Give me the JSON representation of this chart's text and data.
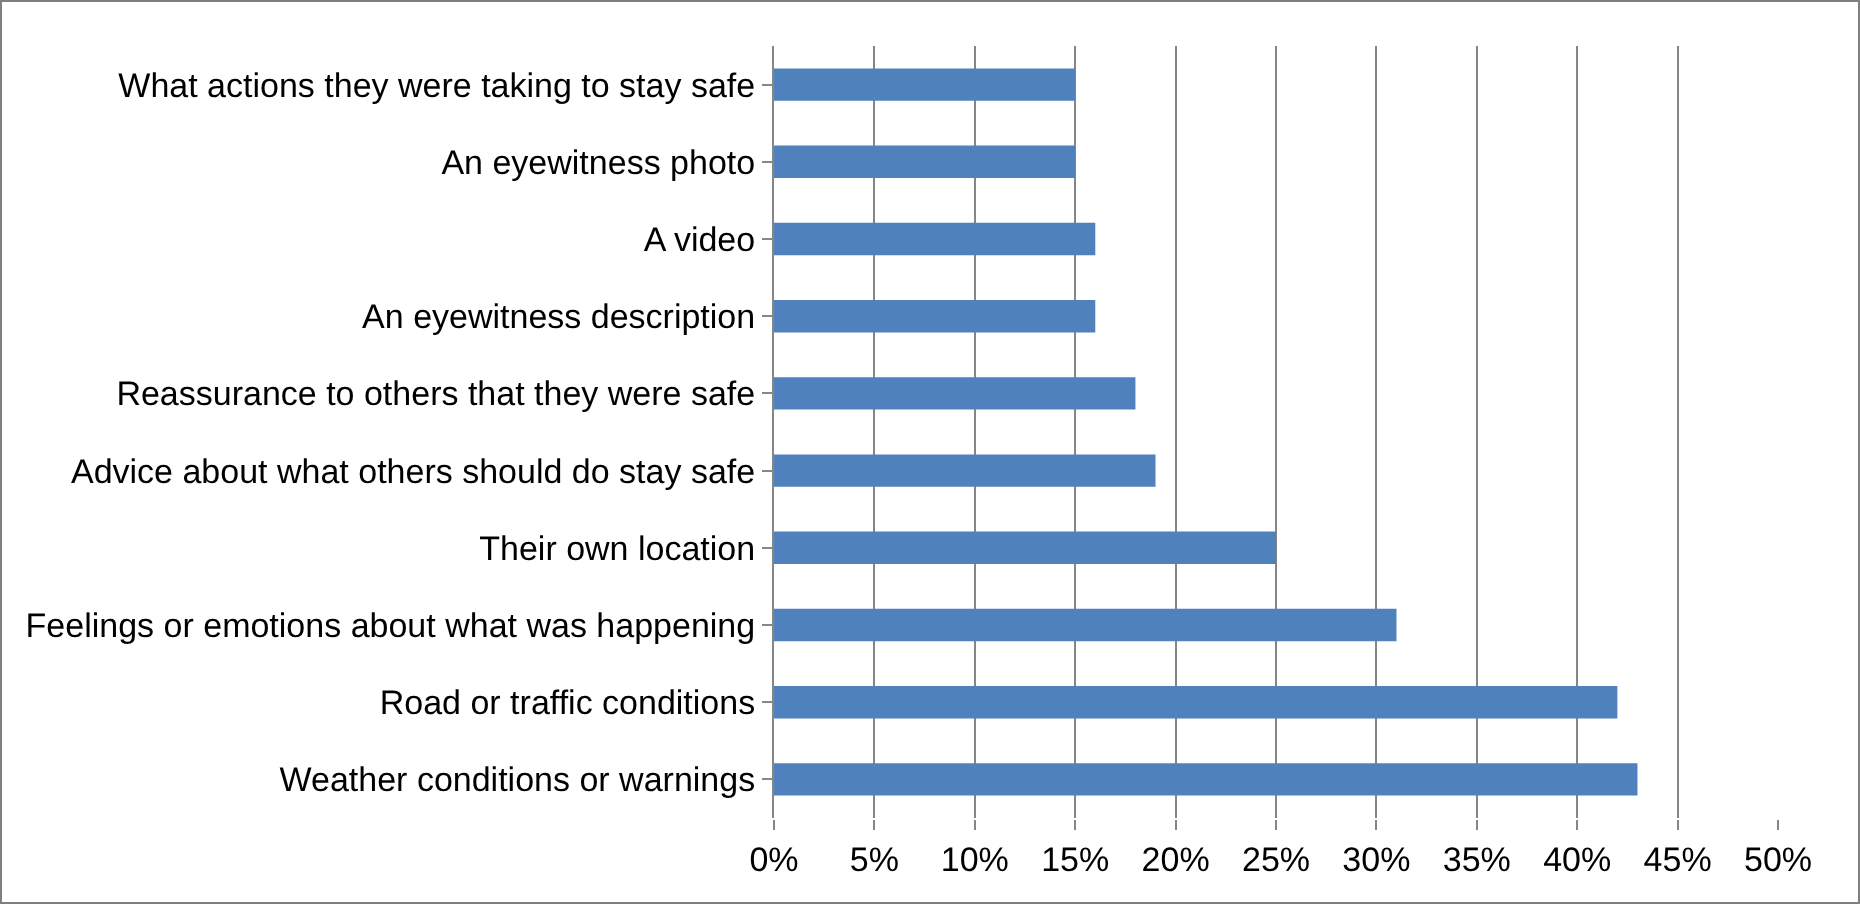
{
  "chart_data": {
    "type": "bar",
    "orientation": "horizontal",
    "categories": [
      "What actions they were taking to stay safe",
      "An eyewitness photo",
      "A video",
      "An eyewitness description",
      "Reassurance to others that they were safe",
      "Advice about what others should do stay safe",
      "Their own location",
      "Feelings or emotions about what was happening",
      "Road or traffic conditions",
      "Weather conditions or warnings"
    ],
    "values": [
      15,
      15,
      16,
      16,
      18,
      19,
      25,
      31,
      42,
      43
    ],
    "color": "#4f81bd",
    "xlim": [
      0,
      50
    ],
    "xticks": [
      {
        "value": 0,
        "label": "0%"
      },
      {
        "value": 5,
        "label": "5%"
      },
      {
        "value": 10,
        "label": "10%"
      },
      {
        "value": 15,
        "label": "15%"
      },
      {
        "value": 20,
        "label": "20%"
      },
      {
        "value": 25,
        "label": "25%"
      },
      {
        "value": 30,
        "label": "30%"
      },
      {
        "value": 35,
        "label": "35%"
      },
      {
        "value": 40,
        "label": "40%"
      },
      {
        "value": 45,
        "label": "45%"
      },
      {
        "value": 50,
        "label": "50%"
      }
    ],
    "grid": "x",
    "legend": false
  }
}
